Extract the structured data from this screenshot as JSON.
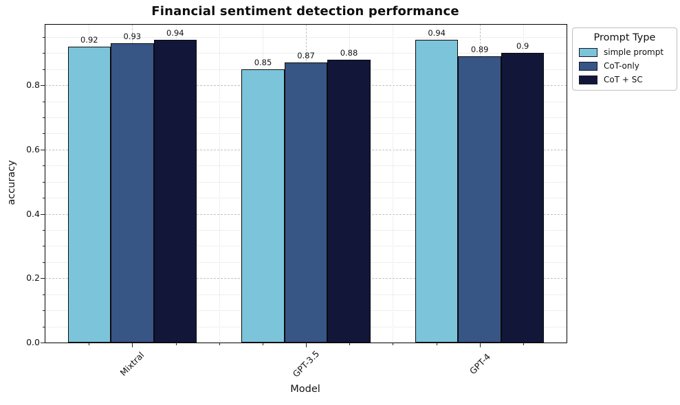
{
  "chart_data": {
    "type": "bar",
    "title": "Financial sentiment detection performance",
    "xlabel": "Model",
    "ylabel": "accuracy",
    "categories": [
      "Mixtral",
      "GPT-3.5",
      "GPT-4"
    ],
    "series": [
      {
        "name": "simple prompt",
        "color": "#7cc4d9",
        "values": [
          0.92,
          0.85,
          0.94
        ],
        "labels": [
          "0.92",
          "0.85",
          "0.94"
        ]
      },
      {
        "name": "CoT-only",
        "color": "#375585",
        "values": [
          0.93,
          0.87,
          0.89
        ],
        "labels": [
          "0.93",
          "0.87",
          "0.89"
        ]
      },
      {
        "name": "CoT + SC",
        "color": "#12173a",
        "values": [
          0.94,
          0.88,
          0.9
        ],
        "labels": [
          "0.94",
          "0.88",
          "0.9"
        ]
      }
    ],
    "bar_edge_color": "#0a0a0a",
    "ylim": [
      0,
      0.988
    ],
    "yticks": [
      0,
      0.2,
      0.4,
      0.6,
      0.8
    ],
    "ytick_labels": [
      "0.0",
      "0.2",
      "0.4",
      "0.6",
      "0.8"
    ],
    "minor_step": 0.05,
    "grid": true,
    "legend": {
      "title": "Prompt Type",
      "position": "upper-right-outside"
    }
  }
}
